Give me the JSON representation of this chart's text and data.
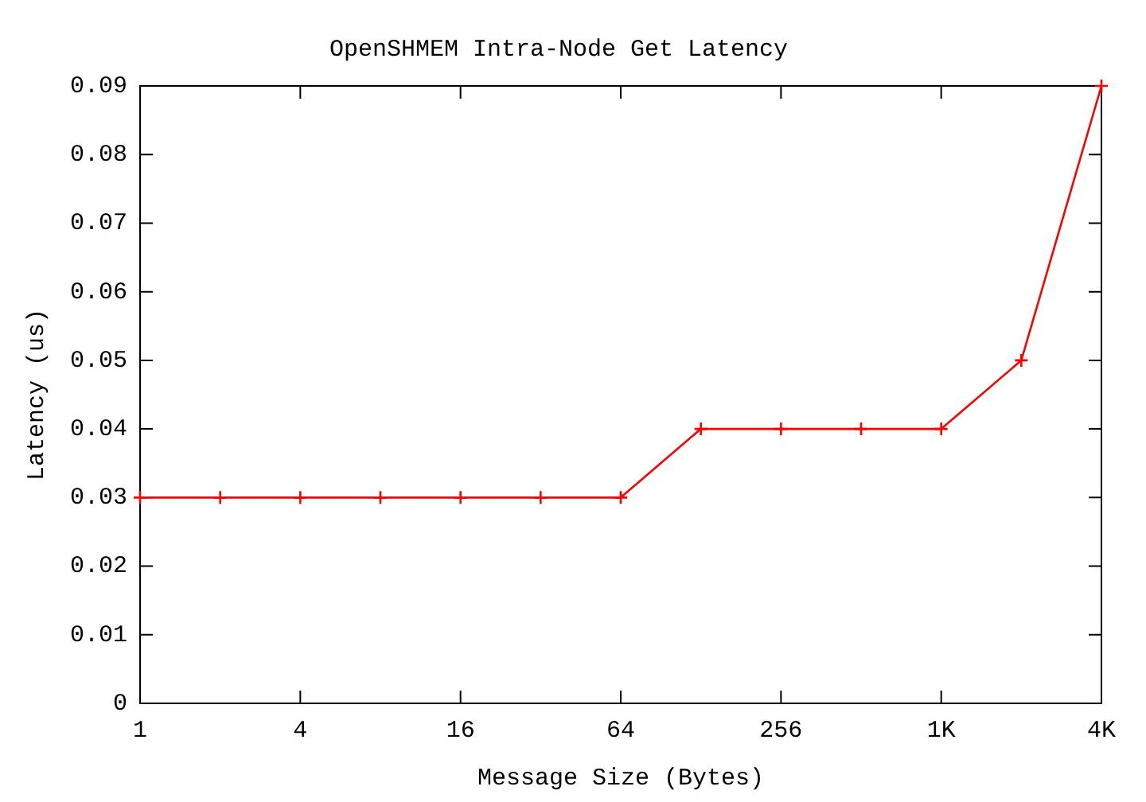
{
  "chart_data": {
    "type": "line",
    "title": "OpenSHMEM Intra-Node Get Latency",
    "xlabel": "Message Size (Bytes)",
    "ylabel": "Latency (us)",
    "x": [
      1,
      2,
      4,
      8,
      16,
      32,
      64,
      128,
      256,
      512,
      1024,
      2048,
      4096
    ],
    "series": [
      {
        "color": "#ff0000",
        "values": [
          0.03,
          0.03,
          0.03,
          0.03,
          0.03,
          0.03,
          0.03,
          0.04,
          0.04,
          0.04,
          0.04,
          0.05,
          0.09
        ]
      }
    ],
    "log": "x",
    "xlim": [
      1,
      4096
    ],
    "xticks": [
      1,
      4,
      16,
      64,
      256,
      {
        "value": 1024,
        "label": "1K"
      },
      {
        "value": 4096,
        "label": "4K"
      }
    ],
    "ylim": [
      0,
      0.09
    ],
    "yticks": [
      0,
      0.01,
      0.02,
      0.03,
      0.04,
      0.05,
      0.06,
      0.07,
      0.08,
      0.09
    ],
    "grid": false,
    "legend": false,
    "marker": "cross",
    "line_style": "solid"
  }
}
